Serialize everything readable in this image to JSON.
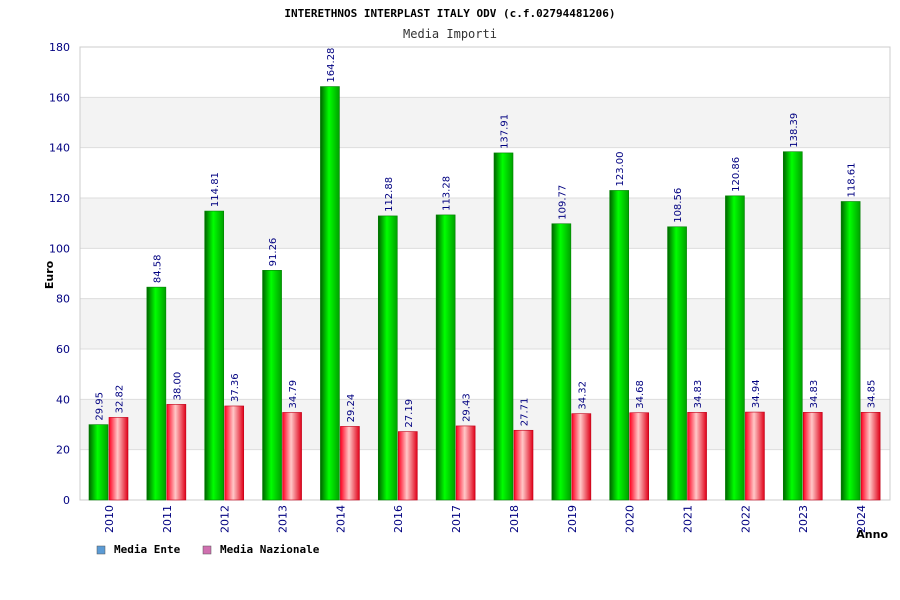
{
  "chart_data": {
    "type": "bar",
    "title": "INTERETHNOS INTERPLAST ITALY ODV (c.f.02794481206)",
    "subtitle": "Media Importi",
    "xlabel": "Anno",
    "ylabel": "Euro",
    "ylim": [
      0,
      180
    ],
    "yticks": [
      0,
      20,
      40,
      60,
      80,
      100,
      120,
      140,
      160,
      180
    ],
    "grid": true,
    "legend_position": "bottom-left",
    "categories": [
      "2010",
      "2011",
      "2012",
      "2013",
      "2014",
      "2016",
      "2017",
      "2018",
      "2019",
      "2020",
      "2021",
      "2022",
      "2023",
      "2024"
    ],
    "series": [
      {
        "name": "Media Ente",
        "color": "#00c000",
        "legend_color": "#5b9bd5",
        "values": [
          29.95,
          84.58,
          114.81,
          91.26,
          164.28,
          112.88,
          113.28,
          137.91,
          109.77,
          123.0,
          108.56,
          120.86,
          138.39,
          118.61
        ],
        "labels": [
          "29.95",
          "84.58",
          "114.81",
          "91.26",
          "164.28",
          "112.88",
          "113.28",
          "137.91",
          "109.77",
          "123.00",
          "108.56",
          "120.86",
          "138.39",
          "118.61"
        ]
      },
      {
        "name": "Media Nazionale",
        "color": "#e8001c",
        "legend_color": "#d070b0",
        "values": [
          32.82,
          38.0,
          37.36,
          34.79,
          29.24,
          27.19,
          29.43,
          27.71,
          34.32,
          34.68,
          34.83,
          34.94,
          34.83,
          34.85
        ],
        "labels": [
          "32.82",
          "38.00",
          "37.36",
          "34.79",
          "29.24",
          "27.19",
          "29.43",
          "27.71",
          "34.32",
          "34.68",
          "34.83",
          "34.94",
          "34.83",
          "34.85"
        ]
      }
    ]
  }
}
